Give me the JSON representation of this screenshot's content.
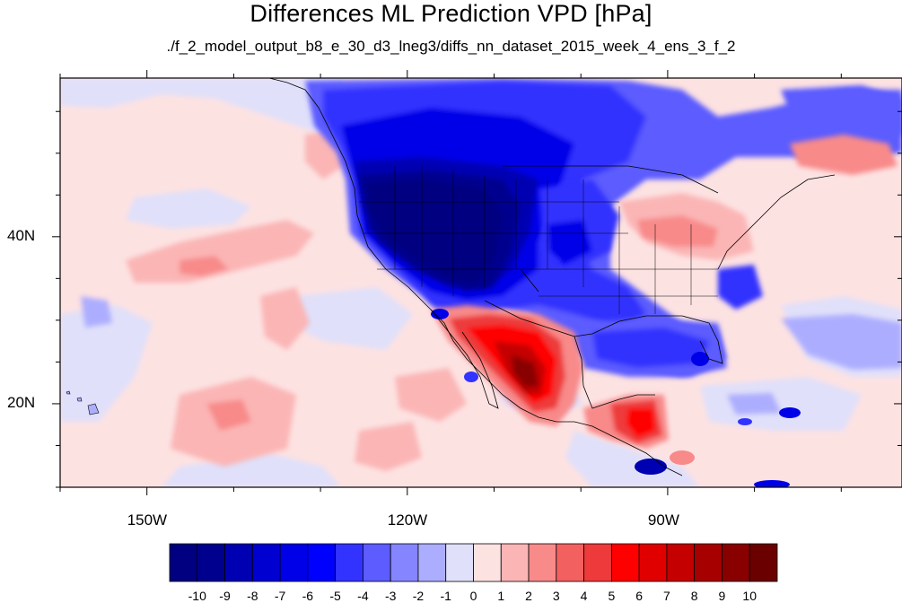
{
  "title": "Differences ML Prediction VPD [hPa]",
  "subtitle": "./f_2_model_output_b8_e_30_d3_lneg3/diffs_nn_dataset_2015_week_4_ens_3_f_2",
  "lon_ticks": [
    {
      "label": "150W",
      "lon": -150
    },
    {
      "label": "120W",
      "lon": -120
    },
    {
      "label": "90W",
      "lon": -90
    }
  ],
  "lat_ticks": [
    {
      "label": "40N",
      "lat": 40
    },
    {
      "label": "20N",
      "lat": 20
    }
  ],
  "extent": {
    "lon_min": -160,
    "lon_max": -63,
    "lat_min": 10,
    "lat_max": 59
  },
  "colorbar": {
    "labels": [
      "-10",
      "-9",
      "-8",
      "-7",
      "-6",
      "-5",
      "-4",
      "-3",
      "-2",
      "-1",
      "0",
      "1",
      "2",
      "3",
      "4",
      "5",
      "6",
      "7",
      "8",
      "9",
      "10"
    ],
    "colors": [
      "#000080",
      "#00008f",
      "#0000b3",
      "#0000d1",
      "#0000e8",
      "#0000ff",
      "#3333ff",
      "#5c5cff",
      "#8585ff",
      "#adadff",
      "#e0e0fa",
      "#fde2e2",
      "#fbb5b5",
      "#f88a8a",
      "#f26060",
      "#ee3a3a",
      "#ff0000",
      "#e00000",
      "#c40000",
      "#a60000",
      "#880000",
      "#6b0000"
    ]
  }
}
